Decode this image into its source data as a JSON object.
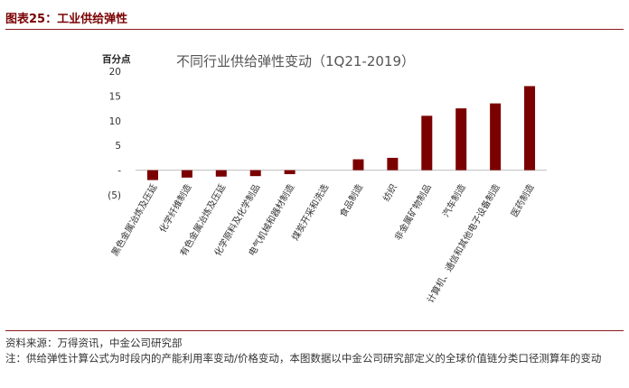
{
  "figure_title": "图表25：工业供给弹性",
  "source": "资料来源：万得资讯，中金公司研究部",
  "note": "注：供给弹性计算公式为时段内的产能利用率变动/价格变动，本图数据以中金公司研究部定义的全球价值链分类口径测算年的变动",
  "colors": {
    "bar": "#7b0000",
    "title_accent": "#7a0000",
    "rule": "#8b1a1a"
  },
  "chart_data": {
    "type": "bar",
    "title": "不同行业供给弹性变动（1Q21-2019）",
    "ylabel": "百分点",
    "ylim": [
      -5,
      20
    ],
    "yticks": [
      "20",
      "15",
      "10",
      "5",
      "-",
      "(5)"
    ],
    "ytick_values": [
      20,
      15,
      10,
      5,
      0,
      -5
    ],
    "categories": [
      "黑色金属冶炼及压延",
      "化学纤维制造",
      "有色金属冶炼及压延",
      "化学原料及化学制品",
      "电气机械和器材制造",
      "煤炭开采和洗选",
      "食品制造",
      "纺织",
      "非金属矿物制品",
      "汽车制造",
      "计算机、通信和其他电子设备制造",
      "医药制造"
    ],
    "values": [
      -2.0,
      -1.5,
      -1.3,
      -1.2,
      -0.8,
      0.0,
      2.2,
      2.5,
      11.0,
      12.5,
      13.5,
      17.0
    ]
  }
}
